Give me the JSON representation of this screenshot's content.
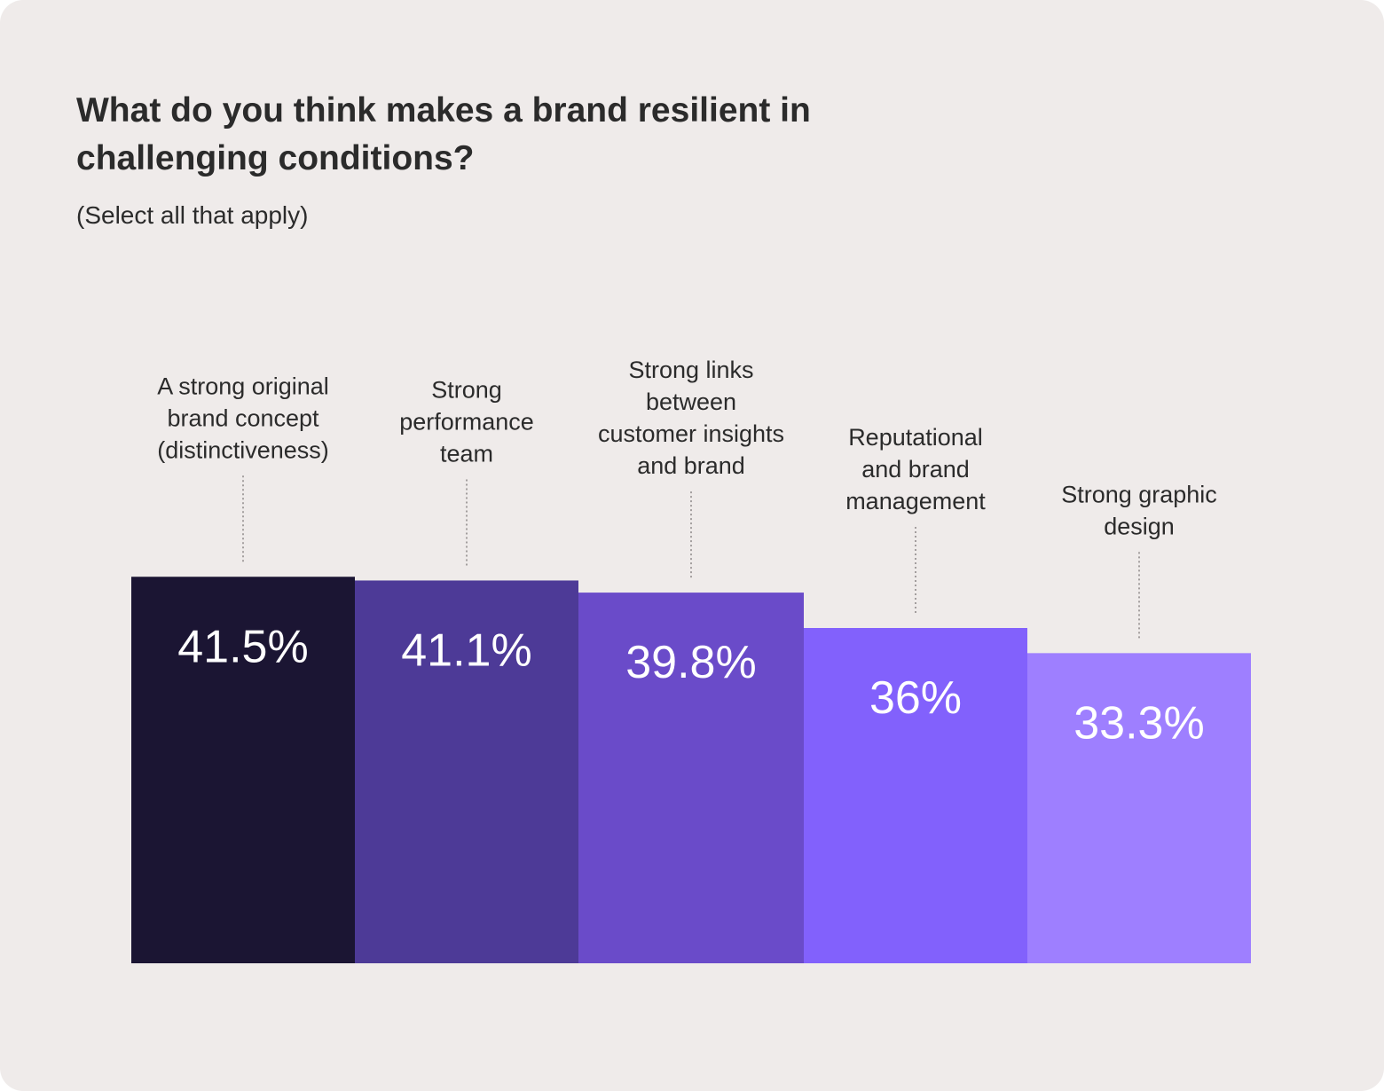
{
  "header": {
    "title": "What do you think makes a brand resilient in challenging conditions?",
    "subtitle": "(Select all that apply)"
  },
  "chart_data": {
    "type": "bar",
    "categories": [
      "A strong original brand concept (distinctiveness)",
      "Strong performance team",
      "Strong links between customer insights and brand",
      "Reputational and brand management",
      "Strong graphic design"
    ],
    "category_lines": [
      [
        "A strong original",
        "brand concept",
        "(distinctiveness)"
      ],
      [
        "Strong",
        "performance",
        "team"
      ],
      [
        "Strong links",
        "between",
        "customer insights",
        "and brand"
      ],
      [
        "Reputational",
        "and brand",
        "management"
      ],
      [
        "Strong graphic",
        "design"
      ]
    ],
    "values": [
      41.5,
      41.1,
      39.8,
      36,
      33.3
    ],
    "value_labels": [
      "41.5%",
      "41.1%",
      "39.8%",
      "36%",
      "33.3%"
    ],
    "colors": [
      "#1b1533",
      "#4d3a97",
      "#6a4bc9",
      "#8261fc",
      "#9e7fff"
    ],
    "title": "What do you think makes a brand resilient in challenging conditions?",
    "subtitle": "(Select all that apply)",
    "xlabel": "",
    "ylabel": "",
    "grid": false,
    "legend": "none"
  }
}
